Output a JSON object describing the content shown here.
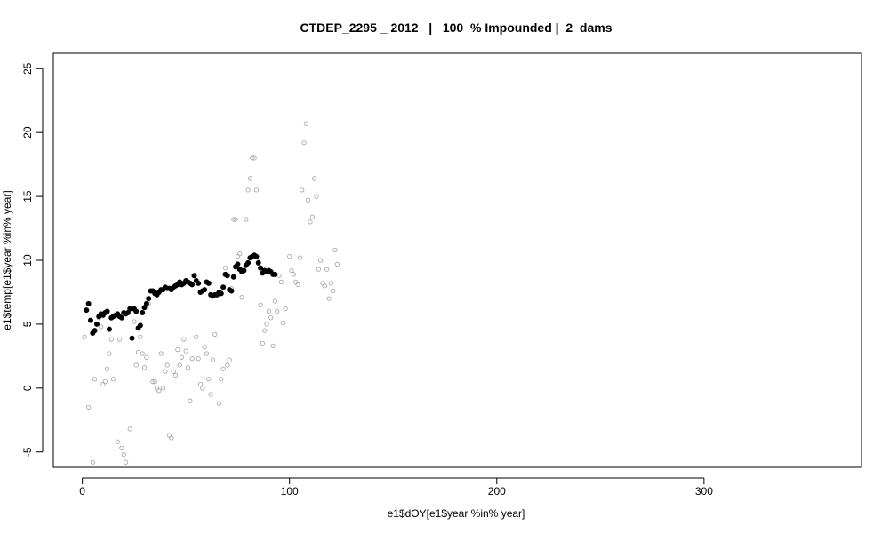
{
  "chart_data": {
    "type": "scatter",
    "title": "CTDEP_2295 _ 2012   |   100  % Impounded |  2  dams",
    "xlabel": "e1$dOY[e1$year %in% year]",
    "ylabel": "e1$temp[e1$year %in% year]",
    "xlim": [
      -14,
      376
    ],
    "ylim": [
      -6.2,
      26.2
    ],
    "x_ticks": [
      0,
      100,
      200,
      300
    ],
    "y_ticks": [
      -5,
      0,
      5,
      10,
      15,
      20,
      25
    ],
    "grid": false,
    "legend": "none",
    "series": [
      {
        "style": "open-circle",
        "color": "#a9a9a9",
        "points": [
          [
            1,
            4.0
          ],
          [
            3,
            -1.5
          ],
          [
            5,
            -5.8
          ],
          [
            6,
            0.7
          ],
          [
            8,
            5.5
          ],
          [
            9,
            4.8
          ],
          [
            10,
            0.3
          ],
          [
            11,
            0.5
          ],
          [
            12,
            1.5
          ],
          [
            13,
            2.7
          ],
          [
            14,
            3.8
          ],
          [
            15,
            0.7
          ],
          [
            17,
            -4.2
          ],
          [
            18,
            3.8
          ],
          [
            19,
            -4.7
          ],
          [
            20,
            -5.2
          ],
          [
            21,
            -5.8
          ],
          [
            23,
            -3.2
          ],
          [
            25,
            5.2
          ],
          [
            26,
            1.8
          ],
          [
            27,
            2.8
          ],
          [
            28,
            4.0
          ],
          [
            29,
            2.7
          ],
          [
            30,
            1.6
          ],
          [
            31,
            2.4
          ],
          [
            32,
            6.6
          ],
          [
            33,
            7.6
          ],
          [
            34,
            0.5
          ],
          [
            35,
            0.5
          ],
          [
            36,
            0.0
          ],
          [
            37,
            -0.2
          ],
          [
            38,
            2.7
          ],
          [
            39,
            0.0
          ],
          [
            40,
            1.3
          ],
          [
            41,
            1.8
          ],
          [
            42,
            -3.7
          ],
          [
            43,
            -3.9
          ],
          [
            44,
            1.3
          ],
          [
            45,
            1.0
          ],
          [
            46,
            3.0
          ],
          [
            47,
            1.8
          ],
          [
            48,
            2.4
          ],
          [
            49,
            3.8
          ],
          [
            50,
            2.9
          ],
          [
            51,
            1.6
          ],
          [
            52,
            -1.0
          ],
          [
            53,
            2.3
          ],
          [
            55,
            4.0
          ],
          [
            56,
            2.3
          ],
          [
            57,
            0.3
          ],
          [
            58,
            0.0
          ],
          [
            59,
            3.2
          ],
          [
            60,
            2.7
          ],
          [
            61,
            0.7
          ],
          [
            62,
            -0.5
          ],
          [
            63,
            2.2
          ],
          [
            64,
            4.2
          ],
          [
            65,
            7.3
          ],
          [
            66,
            -1.2
          ],
          [
            67,
            0.7
          ],
          [
            68,
            1.5
          ],
          [
            69,
            9.4
          ],
          [
            70,
            1.8
          ],
          [
            71,
            2.2
          ],
          [
            72,
            7.8
          ],
          [
            73,
            13.2
          ],
          [
            74,
            13.2
          ],
          [
            75,
            10.3
          ],
          [
            76,
            10.5
          ],
          [
            77,
            7.1
          ],
          [
            79,
            13.2
          ],
          [
            80,
            15.5
          ],
          [
            81,
            16.4
          ],
          [
            82,
            18.0
          ],
          [
            83,
            18.0
          ],
          [
            84,
            15.5
          ],
          [
            85,
            10.2
          ],
          [
            86,
            6.5
          ],
          [
            87,
            3.5
          ],
          [
            88,
            4.5
          ],
          [
            89,
            5.0
          ],
          [
            90,
            6.0
          ],
          [
            91,
            5.5
          ],
          [
            92,
            3.3
          ],
          [
            93,
            6.8
          ],
          [
            94,
            6.0
          ],
          [
            95,
            8.8
          ],
          [
            96,
            8.3
          ],
          [
            97,
            5.1
          ],
          [
            98,
            6.2
          ],
          [
            100,
            10.3
          ],
          [
            101,
            9.2
          ],
          [
            102,
            8.9
          ],
          [
            103,
            8.3
          ],
          [
            104,
            8.1
          ],
          [
            105,
            10.2
          ],
          [
            106,
            15.5
          ],
          [
            107,
            19.2
          ],
          [
            108,
            20.7
          ],
          [
            109,
            14.7
          ],
          [
            110,
            13.0
          ],
          [
            111,
            13.4
          ],
          [
            112,
            16.4
          ],
          [
            113,
            15.0
          ],
          [
            114,
            9.3
          ],
          [
            115,
            10.0
          ],
          [
            116,
            8.2
          ],
          [
            117,
            8.0
          ],
          [
            118,
            9.3
          ],
          [
            119,
            7.0
          ],
          [
            120,
            8.2
          ],
          [
            121,
            7.6
          ],
          [
            122,
            10.8
          ],
          [
            123,
            9.7
          ]
        ]
      },
      {
        "style": "filled-circle",
        "color": "#000000",
        "points": [
          [
            2,
            6.1
          ],
          [
            3,
            6.6
          ],
          [
            4,
            5.3
          ],
          [
            5,
            4.3
          ],
          [
            6,
            4.5
          ],
          [
            7,
            5.0
          ],
          [
            8,
            5.6
          ],
          [
            9,
            5.8
          ],
          [
            10,
            5.7
          ],
          [
            11,
            5.9
          ],
          [
            12,
            6.0
          ],
          [
            13,
            4.6
          ],
          [
            14,
            5.5
          ],
          [
            15,
            5.6
          ],
          [
            16,
            5.7
          ],
          [
            17,
            5.8
          ],
          [
            18,
            5.6
          ],
          [
            19,
            5.5
          ],
          [
            20,
            5.9
          ],
          [
            21,
            5.8
          ],
          [
            22,
            5.9
          ],
          [
            23,
            6.2
          ],
          [
            24,
            3.9
          ],
          [
            25,
            6.2
          ],
          [
            26,
            6.0
          ],
          [
            27,
            4.7
          ],
          [
            28,
            4.9
          ],
          [
            29,
            5.9
          ],
          [
            30,
            6.3
          ],
          [
            31,
            6.6
          ],
          [
            32,
            7.0
          ],
          [
            33,
            7.6
          ],
          [
            34,
            7.6
          ],
          [
            35,
            7.4
          ],
          [
            36,
            7.3
          ],
          [
            37,
            7.5
          ],
          [
            38,
            7.7
          ],
          [
            39,
            7.7
          ],
          [
            40,
            7.9
          ],
          [
            41,
            7.8
          ],
          [
            42,
            7.8
          ],
          [
            43,
            7.7
          ],
          [
            44,
            7.9
          ],
          [
            45,
            8.0
          ],
          [
            46,
            8.1
          ],
          [
            47,
            8.3
          ],
          [
            48,
            8.1
          ],
          [
            49,
            8.2
          ],
          [
            50,
            8.4
          ],
          [
            51,
            8.3
          ],
          [
            52,
            8.2
          ],
          [
            53,
            8.1
          ],
          [
            54,
            8.8
          ],
          [
            55,
            8.4
          ],
          [
            56,
            8.2
          ],
          [
            57,
            7.5
          ],
          [
            58,
            7.6
          ],
          [
            59,
            7.7
          ],
          [
            60,
            8.3
          ],
          [
            61,
            8.2
          ],
          [
            62,
            7.3
          ],
          [
            63,
            7.2
          ],
          [
            64,
            7.3
          ],
          [
            65,
            7.3
          ],
          [
            66,
            7.5
          ],
          [
            67,
            7.4
          ],
          [
            68,
            7.9
          ],
          [
            69,
            8.9
          ],
          [
            70,
            8.8
          ],
          [
            71,
            7.7
          ],
          [
            72,
            7.6
          ],
          [
            73,
            8.7
          ],
          [
            74,
            9.5
          ],
          [
            75,
            9.7
          ],
          [
            76,
            9.3
          ],
          [
            77,
            9.1
          ],
          [
            78,
            9.2
          ],
          [
            79,
            9.6
          ],
          [
            80,
            9.8
          ],
          [
            81,
            10.2
          ],
          [
            82,
            10.3
          ],
          [
            83,
            10.4
          ],
          [
            84,
            10.3
          ],
          [
            85,
            9.8
          ],
          [
            86,
            9.4
          ],
          [
            87,
            9.0
          ],
          [
            88,
            9.2
          ],
          [
            89,
            9.1
          ],
          [
            90,
            9.2
          ],
          [
            91,
            9.1
          ],
          [
            92,
            8.9
          ],
          [
            93,
            8.9
          ]
        ]
      }
    ]
  }
}
